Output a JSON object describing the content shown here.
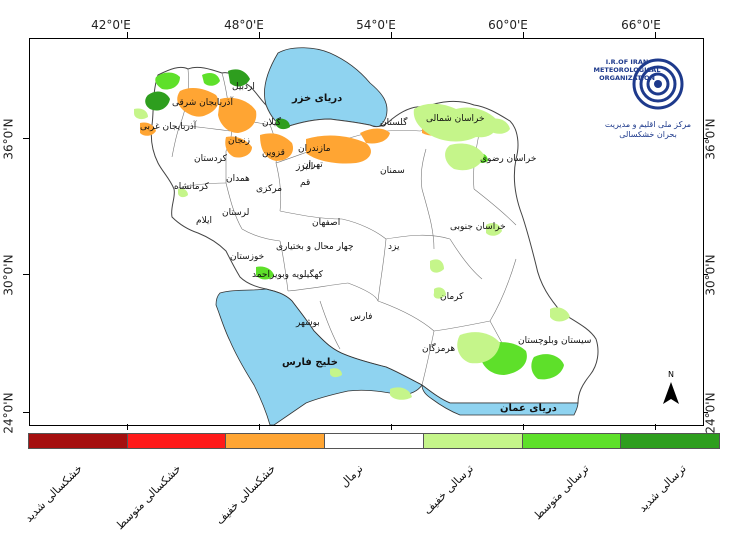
{
  "map": {
    "lon_labels": [
      "42°0'E",
      "48°0'E",
      "54°0'E",
      "60°0'E",
      "66°0'E"
    ],
    "lat_labels": [
      "36°0'N",
      "30°0'N",
      "24°0'N"
    ],
    "seas": {
      "caspian": "دریای خزر",
      "persian_gulf": "خلیج فارس",
      "oman_sea": "دریای عمان"
    },
    "provinces": {
      "ardabil": "اردبیل",
      "east_azerbaijan": "آذربایجان شرقی",
      "west_azerbaijan": "آذربایجان غربی",
      "zanjan": "زنجان",
      "gilan": "گیلان",
      "mazandaran": "مازندران",
      "golestan": "گلستان",
      "north_khorasan": "خراسان شمالی",
      "razavi_khorasan": "خراسان رضوی",
      "south_khorasan": "خراسان جنوبی",
      "kurdistan": "کردستان",
      "hamadan": "همدان",
      "qazvin": "قزوین",
      "alborz": "البرز",
      "tehran": "تهران",
      "semnan": "سمنان",
      "qom": "قم",
      "markazi": "مرکزی",
      "kermanshah": "کرمانشاه",
      "lorestan": "لرستان",
      "ilam": "ایلام",
      "isfahan": "اصفهان",
      "yazd": "یزد",
      "khuzestan": "خوزستان",
      "chaharmahal": "چهار محال و بختیاری",
      "kohgiluyeh": "کهگیلویه وبویراحمد",
      "fars": "فارس",
      "bushehr": "بوشهر",
      "kerman": "کرمان",
      "hormozgan": "هرمزگان",
      "sistan": "سیستان وبلوچستان"
    },
    "north_label": "N"
  },
  "logo": {
    "english": "I.R.OF IRAN METEOROLOGICAL ORGANIZATION",
    "persian_top": "سازمان هواشناسی کشور",
    "persian": "مرکز ملی اقلیم و مدیریت بحران خشکسالی"
  },
  "legend": {
    "items": [
      {
        "label": "خشکسالی شدید",
        "color": "#a50f0f"
      },
      {
        "label": "خشکسالی متوسط",
        "color": "#ff1a1a"
      },
      {
        "label": "خشکسالی خفیف",
        "color": "#ffa533"
      },
      {
        "label": "نرمال",
        "color": "#ffffff"
      },
      {
        "label": "ترسالی خفیف",
        "color": "#c5f58a"
      },
      {
        "label": "ترسالی متوسط",
        "color": "#5ee02a"
      },
      {
        "label": "ترسالی شدید",
        "color": "#2e9e1e"
      }
    ]
  },
  "colors": {
    "water": "#8fd3f0",
    "drought_mild": "#ffa533",
    "wet_mild": "#c5f58a",
    "wet_moderate": "#5ee02a",
    "wet_severe": "#2e9e1e"
  }
}
